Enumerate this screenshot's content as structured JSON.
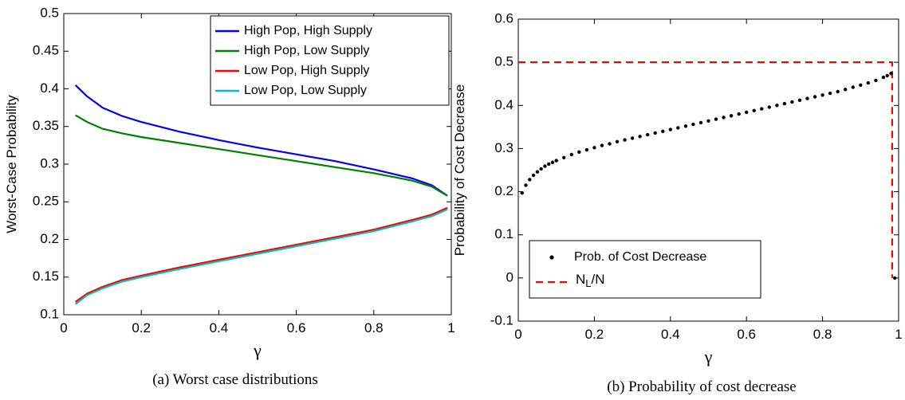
{
  "chart_data": [
    {
      "type": "line",
      "caption": "(a) Worst case distributions",
      "xlabel": "γ",
      "ylabel": "Worst-Case Probability",
      "xlim": [
        0,
        1
      ],
      "ylim": [
        0.1,
        0.5
      ],
      "xticks": [
        "0",
        "0.2",
        "0.4",
        "0.6",
        "0.8",
        "1"
      ],
      "yticks": [
        "0.1",
        "0.15",
        "0.2",
        "0.25",
        "0.3",
        "0.35",
        "0.4",
        "0.45",
        "0.5"
      ],
      "legend_position": "top-right",
      "grid": false,
      "x": [
        0.03,
        0.06,
        0.1,
        0.15,
        0.2,
        0.3,
        0.4,
        0.5,
        0.6,
        0.7,
        0.8,
        0.9,
        0.95,
        0.99
      ],
      "series": [
        {
          "name": "High Pop, High Supply",
          "color": "#0000ff",
          "values": [
            0.405,
            0.39,
            0.375,
            0.364,
            0.356,
            0.343,
            0.332,
            0.322,
            0.313,
            0.304,
            0.293,
            0.281,
            0.272,
            0.258
          ]
        },
        {
          "name": "High Pop, Low Supply",
          "color": "#008000",
          "values": [
            0.365,
            0.356,
            0.347,
            0.341,
            0.336,
            0.328,
            0.32,
            0.312,
            0.304,
            0.296,
            0.288,
            0.278,
            0.27,
            0.258
          ]
        },
        {
          "name": "Low Pop, High Supply",
          "color": "#ff0000",
          "values": [
            0.117,
            0.128,
            0.137,
            0.146,
            0.152,
            0.163,
            0.173,
            0.183,
            0.193,
            0.203,
            0.213,
            0.226,
            0.233,
            0.242
          ]
        },
        {
          "name": "Low Pop, Low Supply",
          "color": "#00bfbf",
          "values": [
            0.114,
            0.126,
            0.135,
            0.144,
            0.15,
            0.161,
            0.171,
            0.181,
            0.191,
            0.201,
            0.211,
            0.224,
            0.231,
            0.24
          ]
        }
      ]
    },
    {
      "type": "scatter",
      "caption": "(b) Probability of cost decrease",
      "xlabel": "γ",
      "ylabel": "Probability of Cost Decrease",
      "xlim": [
        0,
        1
      ],
      "ylim": [
        -0.1,
        0.6
      ],
      "xticks": [
        "0",
        "0.2",
        "0.4",
        "0.6",
        "0.8",
        "1"
      ],
      "yticks": [
        "-0.1",
        "0",
        "0.1",
        "0.2",
        "0.3",
        "0.4",
        "0.5",
        "0.6"
      ],
      "legend_position": "bottom-left",
      "grid": false,
      "series": [
        {
          "name": "Prob. of Cost Decrease",
          "color": "#000000",
          "marker": "dot",
          "x": [
            0.01,
            0.02,
            0.03,
            0.04,
            0.05,
            0.06,
            0.07,
            0.08,
            0.09,
            0.1,
            0.12,
            0.14,
            0.16,
            0.18,
            0.2,
            0.22,
            0.24,
            0.26,
            0.28,
            0.3,
            0.32,
            0.34,
            0.36,
            0.38,
            0.4,
            0.42,
            0.44,
            0.46,
            0.48,
            0.5,
            0.52,
            0.54,
            0.56,
            0.58,
            0.6,
            0.62,
            0.64,
            0.66,
            0.68,
            0.7,
            0.72,
            0.74,
            0.76,
            0.78,
            0.8,
            0.82,
            0.84,
            0.86,
            0.88,
            0.9,
            0.92,
            0.94,
            0.96,
            0.97,
            0.98,
            0.99
          ],
          "values": [
            0.197,
            0.215,
            0.228,
            0.238,
            0.246,
            0.253,
            0.259,
            0.264,
            0.268,
            0.272,
            0.279,
            0.286,
            0.292,
            0.297,
            0.302,
            0.307,
            0.311,
            0.316,
            0.32,
            0.324,
            0.328,
            0.332,
            0.336,
            0.34,
            0.344,
            0.348,
            0.352,
            0.356,
            0.36,
            0.364,
            0.368,
            0.372,
            0.376,
            0.38,
            0.384,
            0.388,
            0.392,
            0.396,
            0.4,
            0.404,
            0.408,
            0.412,
            0.416,
            0.42,
            0.424,
            0.428,
            0.432,
            0.437,
            0.442,
            0.447,
            0.452,
            0.458,
            0.465,
            0.469,
            0.474,
            0.0
          ]
        },
        {
          "name": "N_L/N",
          "color": "#ff0000",
          "style": "dashed",
          "x": [
            0,
            0.983,
            0.983
          ],
          "values": [
            0.5,
            0.5,
            0.0
          ]
        }
      ]
    }
  ]
}
